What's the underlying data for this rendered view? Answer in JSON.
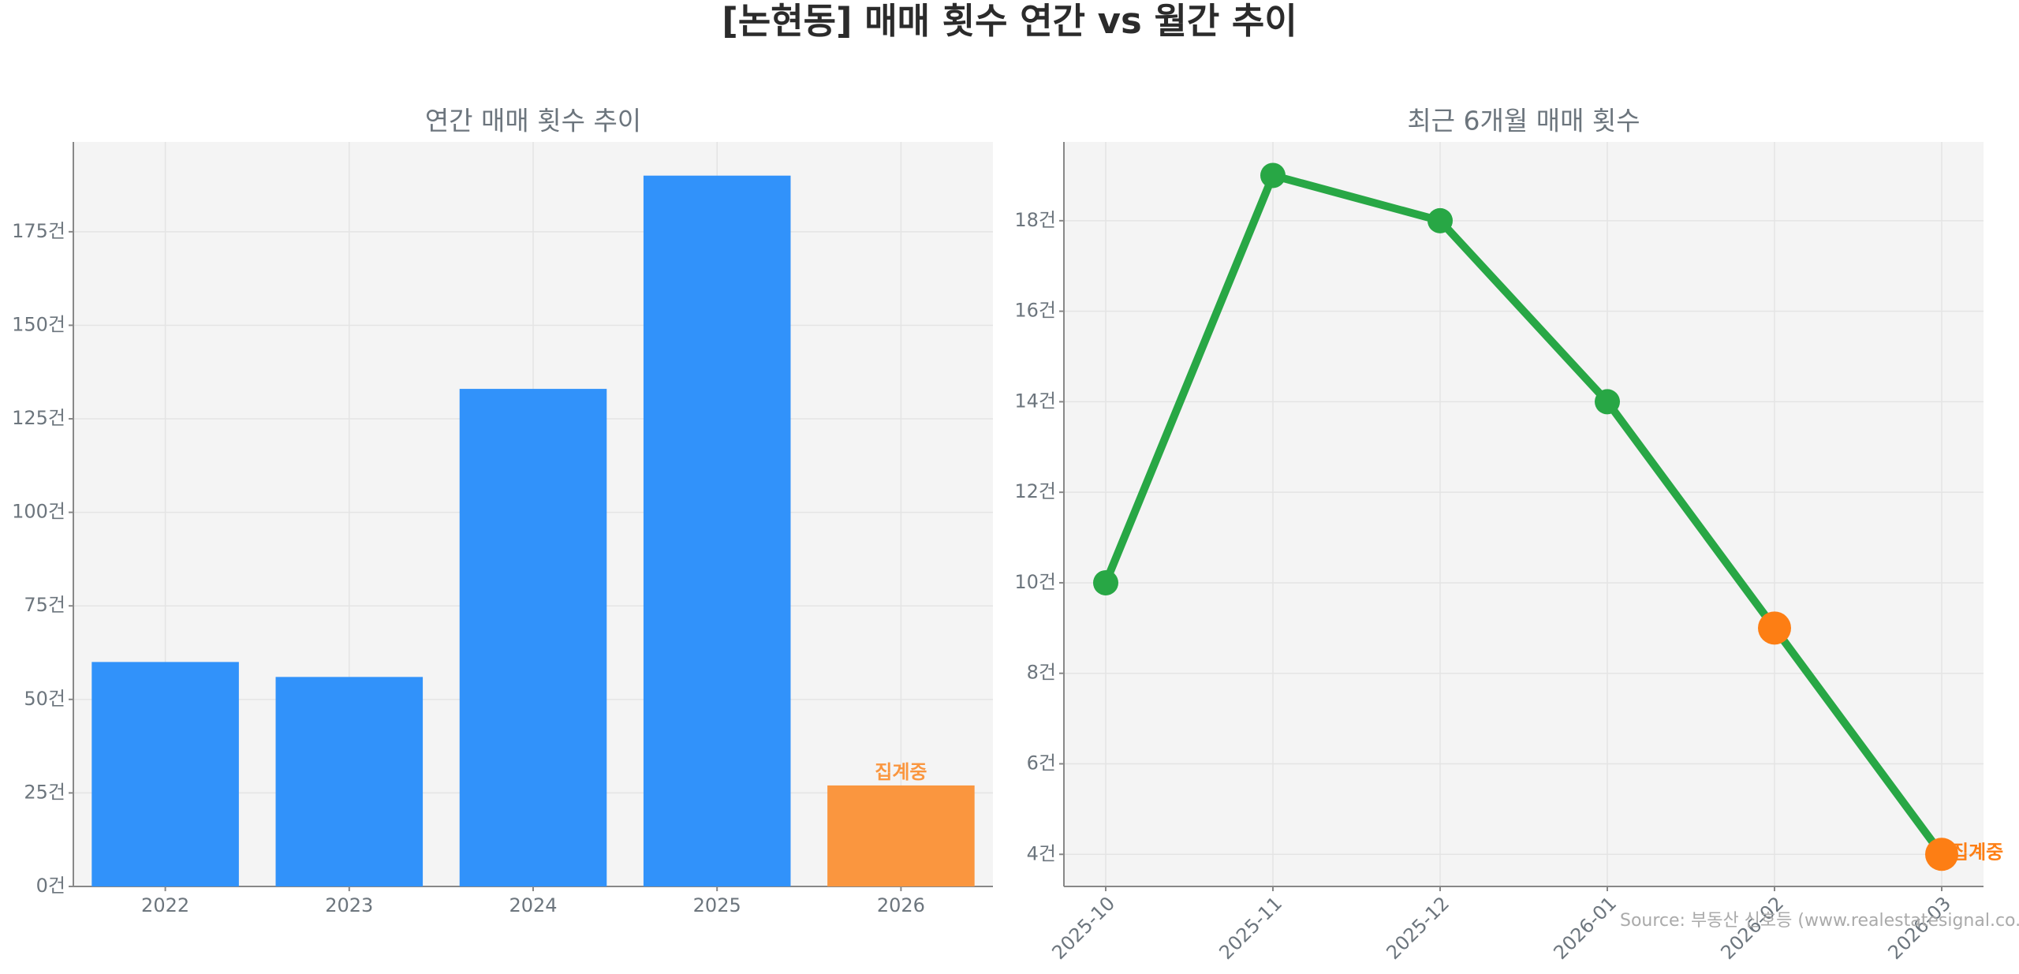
{
  "title": "[논현동] 매매 횟수 연간 vs 월간 추이",
  "source": "Source: 부동산 신호등 (www.realestatesignal.co.kr)",
  "chart_data": [
    {
      "type": "bar",
      "title": "연간 매매 횟수 추이",
      "categories": [
        "2022",
        "2023",
        "2024",
        "2025",
        "2026"
      ],
      "values": [
        60,
        56,
        133,
        190,
        27
      ],
      "colors": [
        "#3192fa",
        "#3192fa",
        "#3192fa",
        "#3192fa",
        "#fa963f"
      ],
      "annotation": "집계중",
      "ylim": [
        0,
        199
      ],
      "yticks": [
        {
          "value": 0,
          "label": "0건"
        },
        {
          "value": 25,
          "label": "25건"
        },
        {
          "value": 50,
          "label": "50건"
        },
        {
          "value": 75,
          "label": "75건"
        },
        {
          "value": 100,
          "label": "100건"
        },
        {
          "value": 125,
          "label": "125건"
        },
        {
          "value": 150,
          "label": "150건"
        },
        {
          "value": 175,
          "label": "175건"
        }
      ],
      "grid": true
    },
    {
      "type": "line",
      "title": "최근 6개월 매매 횟수",
      "categories": [
        "2025-10",
        "2025-11",
        "2025-12",
        "2026-01",
        "2026-02",
        "2026-03"
      ],
      "values": [
        10,
        19,
        18,
        14,
        9,
        4
      ],
      "color": "#28a745",
      "marker_colors": [
        "#28a745",
        "#28a745",
        "#28a745",
        "#28a745",
        "#fd7e14",
        "#fd7e14"
      ],
      "annotation": "집계중",
      "ylim": [
        3.29,
        19.74
      ],
      "yticks": [
        {
          "value": 4,
          "label": "4건"
        },
        {
          "value": 6,
          "label": "6건"
        },
        {
          "value": 8,
          "label": "8건"
        },
        {
          "value": 10,
          "label": "10건"
        },
        {
          "value": 12,
          "label": "12건"
        },
        {
          "value": 14,
          "label": "14건"
        },
        {
          "value": 16,
          "label": "16건"
        },
        {
          "value": 18,
          "label": "18건"
        }
      ],
      "grid": true
    }
  ]
}
